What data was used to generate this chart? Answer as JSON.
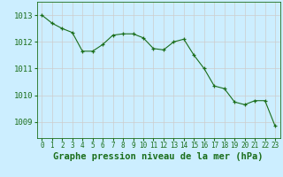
{
  "x": [
    0,
    1,
    2,
    3,
    4,
    5,
    6,
    7,
    8,
    9,
    10,
    11,
    12,
    13,
    14,
    15,
    16,
    17,
    18,
    19,
    20,
    21,
    22,
    23
  ],
  "y": [
    1013.0,
    1012.7,
    1012.5,
    1012.35,
    1011.65,
    1011.65,
    1011.9,
    1012.25,
    1012.3,
    1012.3,
    1012.15,
    1011.75,
    1011.7,
    1012.0,
    1012.1,
    1011.5,
    1011.0,
    1010.35,
    1010.25,
    1009.75,
    1009.65,
    1009.8,
    1009.8,
    1008.85
  ],
  "line_color": "#1a6e1a",
  "marker_color": "#1a6e1a",
  "bg_color": "#cceeff",
  "grid_color_v": "#cccccc",
  "grid_color_h": "#cccccc",
  "ylabel_ticks": [
    1009,
    1010,
    1011,
    1012,
    1013
  ],
  "ylim": [
    1008.4,
    1013.5
  ],
  "xlim": [
    -0.5,
    23.5
  ],
  "xtick_labels": [
    "0",
    "1",
    "2",
    "3",
    "4",
    "5",
    "6",
    "7",
    "8",
    "9",
    "10",
    "11",
    "12",
    "13",
    "14",
    "15",
    "16",
    "17",
    "18",
    "19",
    "20",
    "21",
    "22",
    "23"
  ],
  "xlabel": "Graphe pression niveau de la mer (hPa)",
  "xlabel_fontsize": 7.5,
  "tick_fontsize": 5.5,
  "ytick_fontsize": 6.5
}
